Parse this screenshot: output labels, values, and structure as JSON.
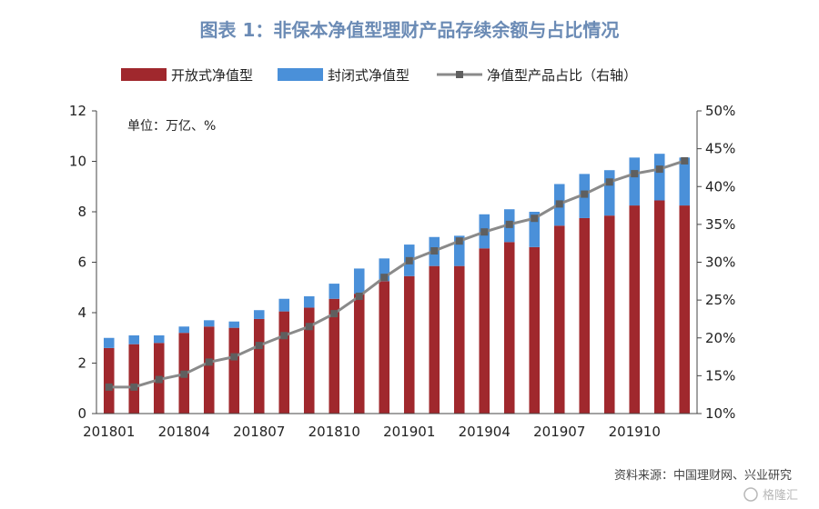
{
  "title": "图表 1：非保本净值型理财产品存续余额与占比情况",
  "unit_label": "单位：万亿、%",
  "source": "资料来源：中国理财网、兴业研究",
  "watermark": "格隆汇",
  "colors": {
    "open": "#a0282d",
    "closed": "#4a90d9",
    "ratio": "#8a8a8a",
    "title": "#6b8bb5"
  },
  "chart_data": {
    "type": "bar",
    "stacked": true,
    "categories": [
      "201801",
      "201802",
      "201803",
      "201804",
      "201805",
      "201806",
      "201807",
      "201808",
      "201809",
      "201810",
      "201811",
      "201812",
      "201901",
      "201902",
      "201903",
      "201904",
      "201905",
      "201906",
      "201907",
      "201908",
      "201909",
      "201910",
      "201911",
      "201912"
    ],
    "x_tick_labels": [
      "201801",
      "201804",
      "201807",
      "201810",
      "201901",
      "201904",
      "201907",
      "201910"
    ],
    "series": [
      {
        "name": "开放式净值型",
        "kind": "bar",
        "axis": "left",
        "values": [
          2.6,
          2.75,
          2.8,
          3.2,
          3.45,
          3.4,
          3.75,
          4.05,
          4.2,
          4.55,
          4.75,
          5.25,
          5.45,
          5.85,
          5.85,
          6.55,
          6.8,
          6.6,
          7.45,
          7.75,
          7.85,
          8.25,
          8.45,
          8.25
        ]
      },
      {
        "name": "封闭式净值型",
        "kind": "bar",
        "axis": "left",
        "values": [
          0.4,
          0.35,
          0.3,
          0.25,
          0.25,
          0.25,
          0.35,
          0.5,
          0.45,
          0.6,
          1.0,
          0.9,
          1.25,
          1.15,
          1.2,
          1.35,
          1.3,
          1.4,
          1.65,
          1.75,
          1.8,
          1.9,
          1.85,
          1.9
        ]
      },
      {
        "name": "净值型产品占比（右轴）",
        "kind": "line",
        "axis": "right",
        "values": [
          13.5,
          13.5,
          14.5,
          15.2,
          16.8,
          17.5,
          19.0,
          20.3,
          21.5,
          23.2,
          25.5,
          28.0,
          30.2,
          31.5,
          32.8,
          34.0,
          35.0,
          35.8,
          37.7,
          39.0,
          40.6,
          41.7,
          42.3,
          43.4
        ]
      }
    ],
    "yleft": {
      "lim": [
        0,
        12
      ],
      "ticks": [
        "0",
        "2",
        "4",
        "6",
        "8",
        "10",
        "12"
      ]
    },
    "yright": {
      "lim": [
        10,
        50
      ],
      "ticks": [
        "10%",
        "15%",
        "20%",
        "25%",
        "30%",
        "35%",
        "40%",
        "45%",
        "50%"
      ]
    },
    "grid": false,
    "legend_position": "top"
  }
}
